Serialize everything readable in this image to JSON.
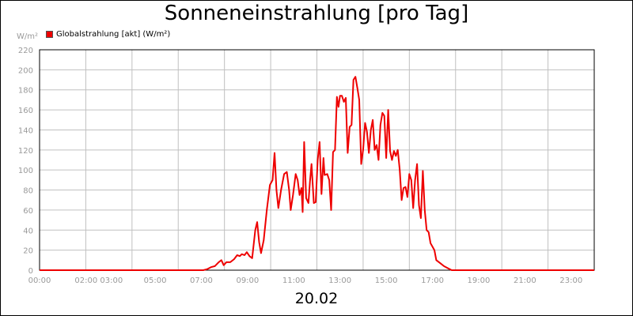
{
  "title": "Sonneneinstrahlung [pro Tag]",
  "date_label": "20.02",
  "unit_label": "W/m²",
  "colors": {
    "series": "#ee0000",
    "grid": "#c0c0c0",
    "tick_text": "#9a9a9a"
  },
  "chart_data": {
    "type": "line",
    "title": "Sonneneinstrahlung [pro Tag]",
    "xlabel": "20.02",
    "ylabel": "W/m²",
    "ylim": [
      0,
      220
    ],
    "xlim": [
      "00:00",
      "24:00"
    ],
    "grid": true,
    "legend_position": "top-left",
    "y_ticks": [
      0,
      20,
      40,
      60,
      80,
      100,
      120,
      140,
      160,
      180,
      200,
      220
    ],
    "x_tick_labels": [
      "00:00",
      "02:00 03:00",
      "05:00",
      "07:00",
      "09:00",
      "11:00",
      "13:00",
      "15:00",
      "17:00",
      "19:00",
      "21:00",
      "23:00"
    ],
    "series": [
      {
        "name": "Globalstrahlung [akt] (W/m²)",
        "color": "#ee0000",
        "points": [
          [
            "00:00",
            0
          ],
          [
            "07:05",
            0
          ],
          [
            "07:15",
            1
          ],
          [
            "07:25",
            3
          ],
          [
            "07:35",
            4
          ],
          [
            "07:45",
            8
          ],
          [
            "07:52",
            10
          ],
          [
            "07:58",
            5
          ],
          [
            "08:05",
            8
          ],
          [
            "08:15",
            8
          ],
          [
            "08:25",
            11
          ],
          [
            "08:33",
            15
          ],
          [
            "08:40",
            14
          ],
          [
            "08:45",
            16
          ],
          [
            "08:52",
            15
          ],
          [
            "08:58",
            18
          ],
          [
            "09:05",
            14
          ],
          [
            "09:12",
            12
          ],
          [
            "09:20",
            40
          ],
          [
            "09:25",
            48
          ],
          [
            "09:30",
            28
          ],
          [
            "09:35",
            17
          ],
          [
            "09:42",
            30
          ],
          [
            "09:50",
            60
          ],
          [
            "09:58",
            85
          ],
          [
            "10:05",
            90
          ],
          [
            "10:10",
            117
          ],
          [
            "10:15",
            80
          ],
          [
            "10:20",
            62
          ],
          [
            "10:27",
            80
          ],
          [
            "10:35",
            96
          ],
          [
            "10:42",
            98
          ],
          [
            "10:48",
            80
          ],
          [
            "10:52",
            60
          ],
          [
            "10:58",
            75
          ],
          [
            "11:05",
            96
          ],
          [
            "11:10",
            90
          ],
          [
            "11:15",
            75
          ],
          [
            "11:20",
            82
          ],
          [
            "11:23",
            58
          ],
          [
            "11:27",
            128
          ],
          [
            "11:32",
            72
          ],
          [
            "11:38",
            67
          ],
          [
            "11:42",
            88
          ],
          [
            "11:46",
            106
          ],
          [
            "11:52",
            67
          ],
          [
            "11:57",
            68
          ],
          [
            "12:02",
            110
          ],
          [
            "12:07",
            128
          ],
          [
            "12:12",
            76
          ],
          [
            "12:17",
            112
          ],
          [
            "12:20",
            95
          ],
          [
            "12:27",
            96
          ],
          [
            "12:32",
            90
          ],
          [
            "12:37",
            60
          ],
          [
            "12:42",
            118
          ],
          [
            "12:47",
            120
          ],
          [
            "12:52",
            173
          ],
          [
            "12:56",
            163
          ],
          [
            "13:00",
            174
          ],
          [
            "13:05",
            174
          ],
          [
            "13:10",
            168
          ],
          [
            "13:15",
            172
          ],
          [
            "13:20",
            117
          ],
          [
            "13:25",
            143
          ],
          [
            "13:30",
            145
          ],
          [
            "13:35",
            190
          ],
          [
            "13:40",
            193
          ],
          [
            "13:45",
            182
          ],
          [
            "13:50",
            170
          ],
          [
            "13:55",
            106
          ],
          [
            "14:00",
            120
          ],
          [
            "14:05",
            147
          ],
          [
            "14:10",
            138
          ],
          [
            "14:15",
            117
          ],
          [
            "14:20",
            140
          ],
          [
            "14:25",
            150
          ],
          [
            "14:30",
            120
          ],
          [
            "14:35",
            125
          ],
          [
            "14:40",
            110
          ],
          [
            "14:45",
            145
          ],
          [
            "14:50",
            157
          ],
          [
            "14:55",
            154
          ],
          [
            "15:00",
            112
          ],
          [
            "15:05",
            160
          ],
          [
            "15:10",
            119
          ],
          [
            "15:15",
            110
          ],
          [
            "15:20",
            119
          ],
          [
            "15:25",
            114
          ],
          [
            "15:30",
            120
          ],
          [
            "15:35",
            100
          ],
          [
            "15:40",
            70
          ],
          [
            "15:45",
            82
          ],
          [
            "15:50",
            83
          ],
          [
            "15:55",
            73
          ],
          [
            "16:00",
            96
          ],
          [
            "16:05",
            90
          ],
          [
            "16:10",
            62
          ],
          [
            "16:15",
            90
          ],
          [
            "16:20",
            106
          ],
          [
            "16:25",
            65
          ],
          [
            "16:30",
            52
          ],
          [
            "16:35",
            99
          ],
          [
            "16:40",
            60
          ],
          [
            "16:45",
            40
          ],
          [
            "16:50",
            38
          ],
          [
            "16:55",
            27
          ],
          [
            "17:05",
            20
          ],
          [
            "17:10",
            10
          ],
          [
            "17:20",
            7
          ],
          [
            "17:30",
            4
          ],
          [
            "17:40",
            2
          ],
          [
            "17:50",
            0
          ],
          [
            "24:00",
            0
          ]
        ]
      }
    ]
  }
}
